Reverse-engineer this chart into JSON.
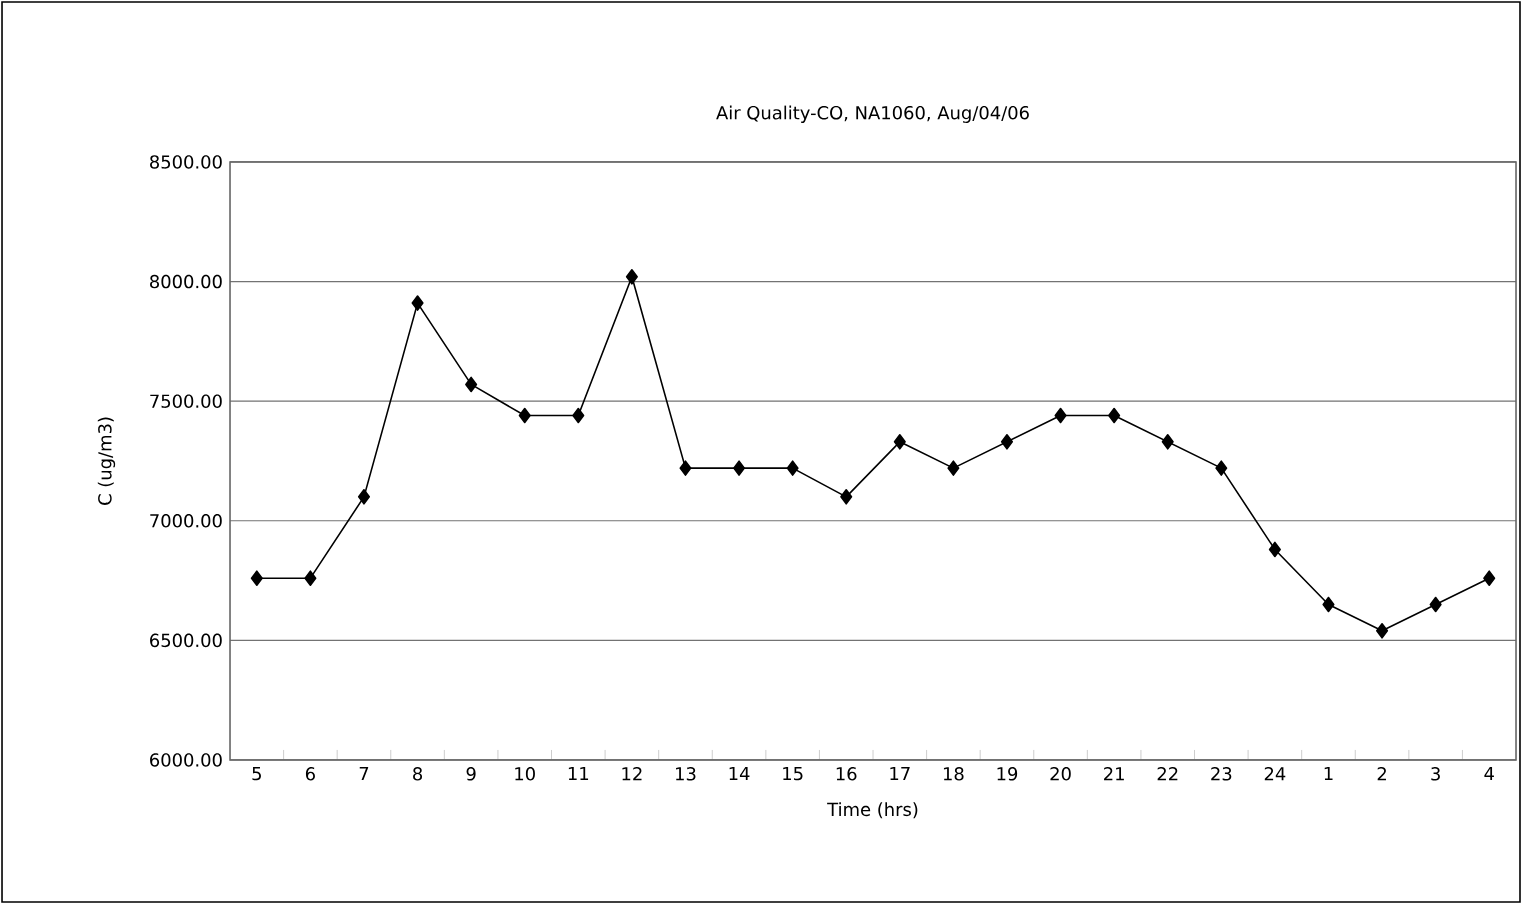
{
  "chart_data": {
    "type": "line",
    "title": "Air Quality-CO, NA1060, Aug/04/06",
    "xlabel": "Time (hrs)",
    "ylabel": "C (ug/m3)",
    "categories": [
      "5",
      "6",
      "7",
      "8",
      "9",
      "10",
      "11",
      "12",
      "13",
      "14",
      "15",
      "16",
      "17",
      "18",
      "19",
      "20",
      "21",
      "22",
      "23",
      "24",
      "1",
      "2",
      "3",
      "4"
    ],
    "series": [
      {
        "color": "#000000",
        "values": [
          6760,
          6760,
          7100,
          7910,
          7570,
          7440,
          7440,
          8020,
          7220,
          7220,
          7220,
          7100,
          7330,
          7220,
          7330,
          7440,
          7440,
          7330,
          7220,
          6880,
          6650,
          6540,
          6650,
          6760
        ]
      }
    ],
    "ylim": [
      6000,
      8500
    ],
    "yticks": [
      {
        "value": 6000,
        "label": "6000.00"
      },
      {
        "value": 6500,
        "label": "6500.00"
      },
      {
        "value": 7000,
        "label": "7000.00"
      },
      {
        "value": 7500,
        "label": "7500.00"
      },
      {
        "value": 8000,
        "label": "8000.00"
      },
      {
        "value": 8500,
        "label": "8500.00"
      }
    ],
    "grid": "y",
    "marker": "diamond",
    "line_style": "solid"
  }
}
